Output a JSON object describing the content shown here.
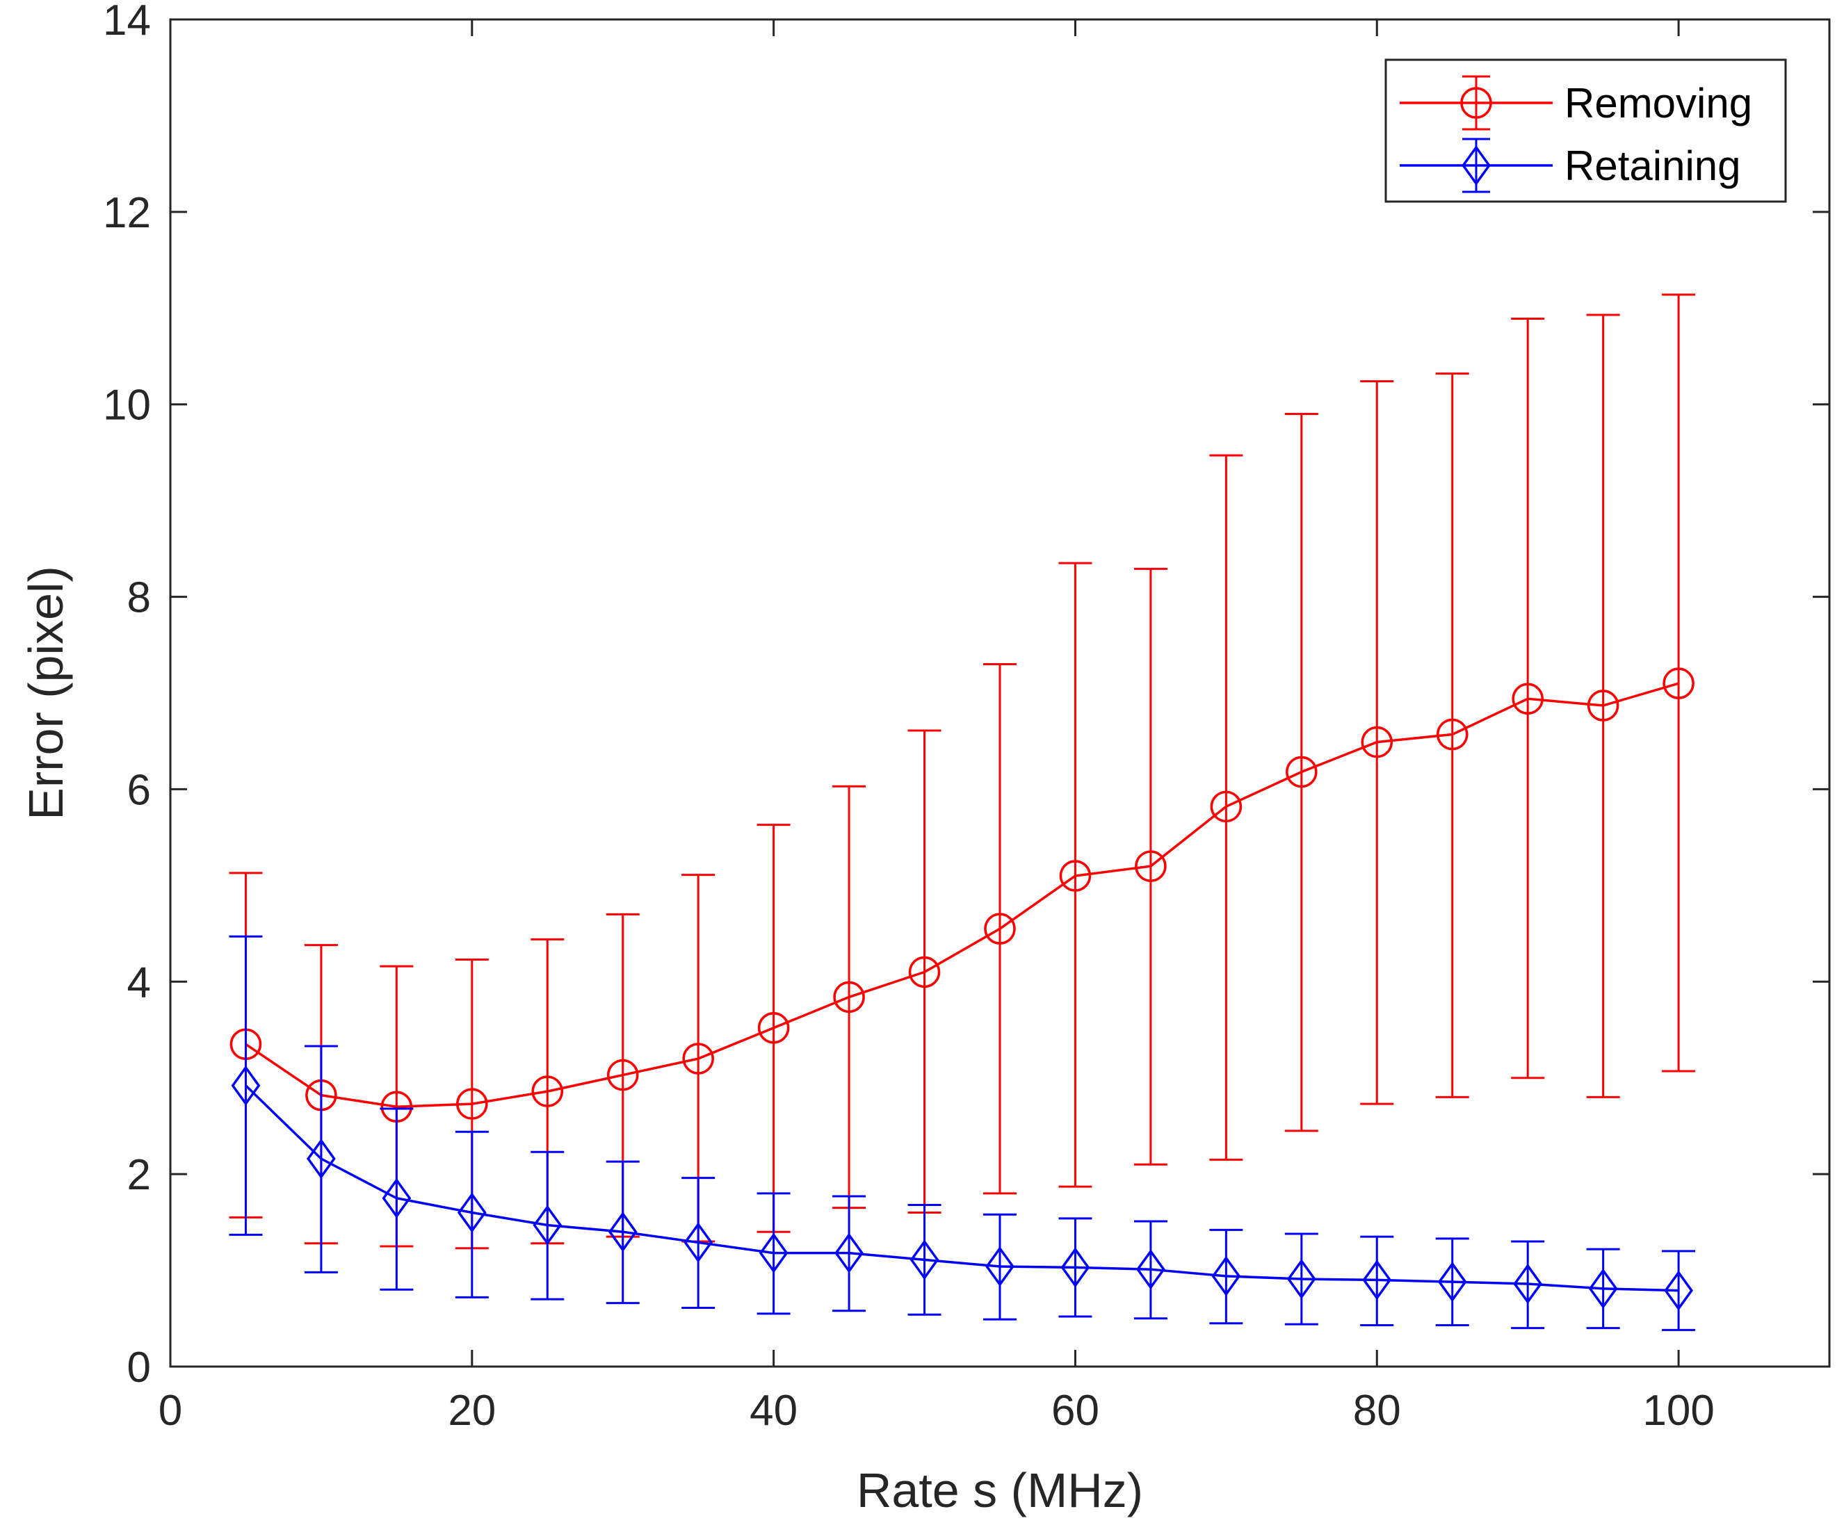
{
  "chart_data": {
    "type": "line",
    "title": "",
    "xlabel": "Rate s (MHz)",
    "ylabel": "Error (pixel)",
    "xlim": [
      0,
      110
    ],
    "ylim": [
      0,
      14
    ],
    "xticks": [
      0,
      20,
      40,
      60,
      80,
      100
    ],
    "yticks": [
      0,
      2,
      4,
      6,
      8,
      10,
      12,
      14
    ],
    "grid": false,
    "legend_position": "top-right",
    "x": [
      5,
      10,
      15,
      20,
      25,
      30,
      35,
      40,
      45,
      50,
      55,
      60,
      65,
      70,
      75,
      80,
      85,
      90,
      95,
      100
    ],
    "series": [
      {
        "name": "Removing",
        "color": "#ff0000",
        "marker": "circle",
        "values": [
          3.35,
          2.82,
          2.7,
          2.73,
          2.86,
          3.03,
          3.2,
          3.52,
          3.84,
          4.1,
          4.55,
          5.1,
          5.2,
          5.82,
          6.18,
          6.49,
          6.57,
          6.94,
          6.87,
          7.1
        ],
        "lower": [
          1.55,
          1.28,
          1.25,
          1.23,
          1.28,
          1.35,
          1.3,
          1.4,
          1.65,
          1.6,
          1.8,
          1.87,
          2.1,
          2.15,
          2.45,
          2.73,
          2.8,
          3.0,
          2.8,
          3.07
        ],
        "upper": [
          5.13,
          4.38,
          4.16,
          4.23,
          4.44,
          4.7,
          5.11,
          5.63,
          6.03,
          6.61,
          7.3,
          8.35,
          8.29,
          9.47,
          9.9,
          10.24,
          10.32,
          10.89,
          10.93,
          11.14
        ]
      },
      {
        "name": "Retaining",
        "color": "#0000ff",
        "marker": "diamond",
        "values": [
          2.92,
          2.16,
          1.75,
          1.6,
          1.47,
          1.4,
          1.29,
          1.18,
          1.18,
          1.11,
          1.04,
          1.03,
          1.01,
          0.94,
          0.91,
          0.9,
          0.88,
          0.86,
          0.81,
          0.79
        ],
        "lower": [
          1.37,
          0.98,
          0.8,
          0.72,
          0.7,
          0.66,
          0.61,
          0.55,
          0.58,
          0.54,
          0.49,
          0.52,
          0.5,
          0.45,
          0.44,
          0.43,
          0.43,
          0.4,
          0.4,
          0.38
        ],
        "upper": [
          4.47,
          3.33,
          2.68,
          2.44,
          2.23,
          2.13,
          1.96,
          1.8,
          1.77,
          1.68,
          1.58,
          1.54,
          1.51,
          1.42,
          1.38,
          1.35,
          1.33,
          1.3,
          1.22,
          1.2
        ]
      }
    ]
  }
}
